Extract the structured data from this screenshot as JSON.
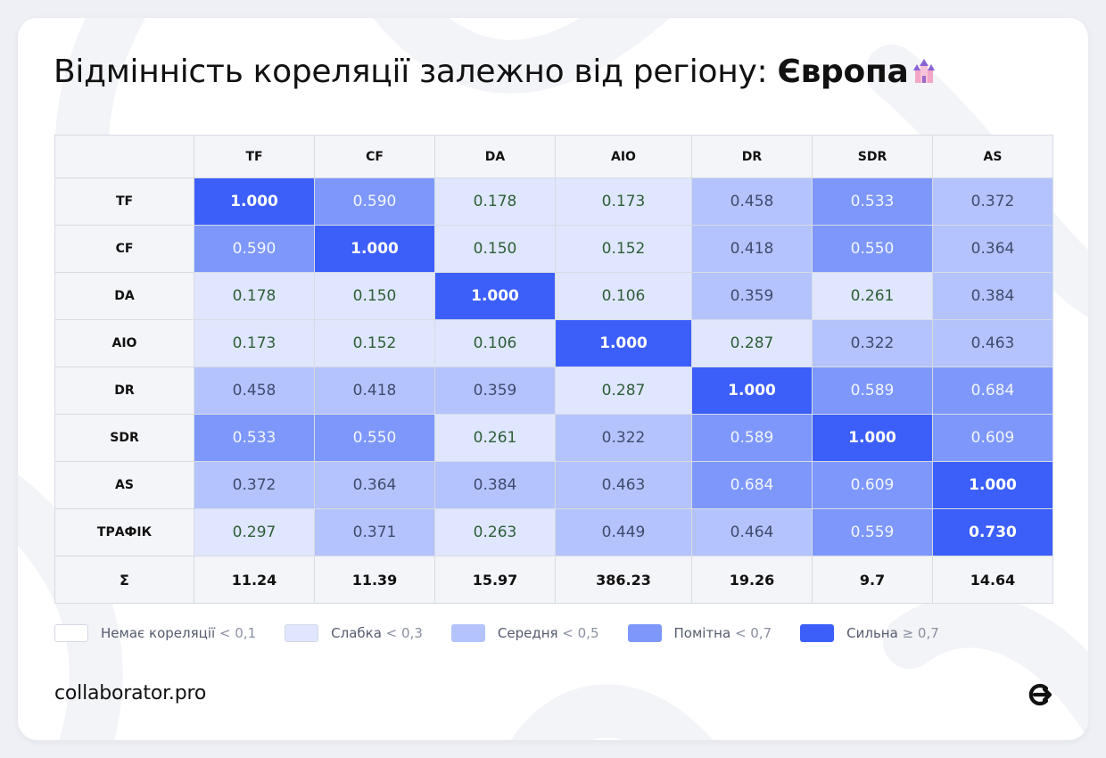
{
  "title": {
    "prefix": "Відмінність кореляції залежно від регіону: ",
    "region": "Європа"
  },
  "chart_data": {
    "type": "heatmap",
    "columns": [
      "TF",
      "CF",
      "DA",
      "AIO",
      "DR",
      "SDR",
      "AS"
    ],
    "rows": [
      {
        "label": "TF",
        "values": [
          1.0,
          0.59,
          0.178,
          0.173,
          0.458,
          0.533,
          0.372
        ]
      },
      {
        "label": "CF",
        "values": [
          0.59,
          1.0,
          0.15,
          0.152,
          0.418,
          0.55,
          0.364
        ]
      },
      {
        "label": "DA",
        "values": [
          0.178,
          0.15,
          1.0,
          0.106,
          0.359,
          0.261,
          0.384
        ]
      },
      {
        "label": "AIO",
        "values": [
          0.173,
          0.152,
          0.106,
          1.0,
          0.287,
          0.322,
          0.463
        ]
      },
      {
        "label": "DR",
        "values": [
          0.458,
          0.418,
          0.359,
          0.287,
          1.0,
          0.589,
          0.684
        ]
      },
      {
        "label": "SDR",
        "values": [
          0.533,
          0.55,
          0.261,
          0.322,
          0.589,
          1.0,
          0.609
        ]
      },
      {
        "label": "AS",
        "values": [
          0.372,
          0.364,
          0.384,
          0.463,
          0.684,
          0.609,
          1.0
        ]
      },
      {
        "label": "ТРАФІК",
        "values": [
          0.297,
          0.371,
          0.263,
          0.449,
          0.464,
          0.559,
          0.73
        ]
      }
    ],
    "sum_row": {
      "label": "Σ",
      "values": [
        "11.24",
        "11.39",
        "15.97",
        "386.23",
        "19.26",
        "9.7",
        "14.64"
      ]
    },
    "legend": [
      {
        "label": "Немає кореляції",
        "threshold": "< 0,1",
        "min": 0.0,
        "color": "#ffffff"
      },
      {
        "label": "Слабка",
        "threshold": "< 0,3",
        "min": 0.1,
        "color": "#dfe6fd"
      },
      {
        "label": "Середня",
        "threshold": "< 0,5",
        "min": 0.3,
        "color": "#b4c3fc"
      },
      {
        "label": "Помітна",
        "threshold": "< 0,7",
        "min": 0.5,
        "color": "#7d97fb"
      },
      {
        "label": "Сильна",
        "threshold": "≥ 0,7",
        "min": 0.7,
        "color": "#3c5ffa"
      }
    ],
    "text_colors": {
      "slabka": "#2f5e3a",
      "medium": "#3f4b6f",
      "notable": "#f2f5ff",
      "strong": "#ffffff"
    }
  },
  "footer": {
    "brand": "collaborator.pro"
  },
  "icons": {
    "title_emoji": "castle-icon",
    "logo": "collaborator-logo-icon"
  }
}
